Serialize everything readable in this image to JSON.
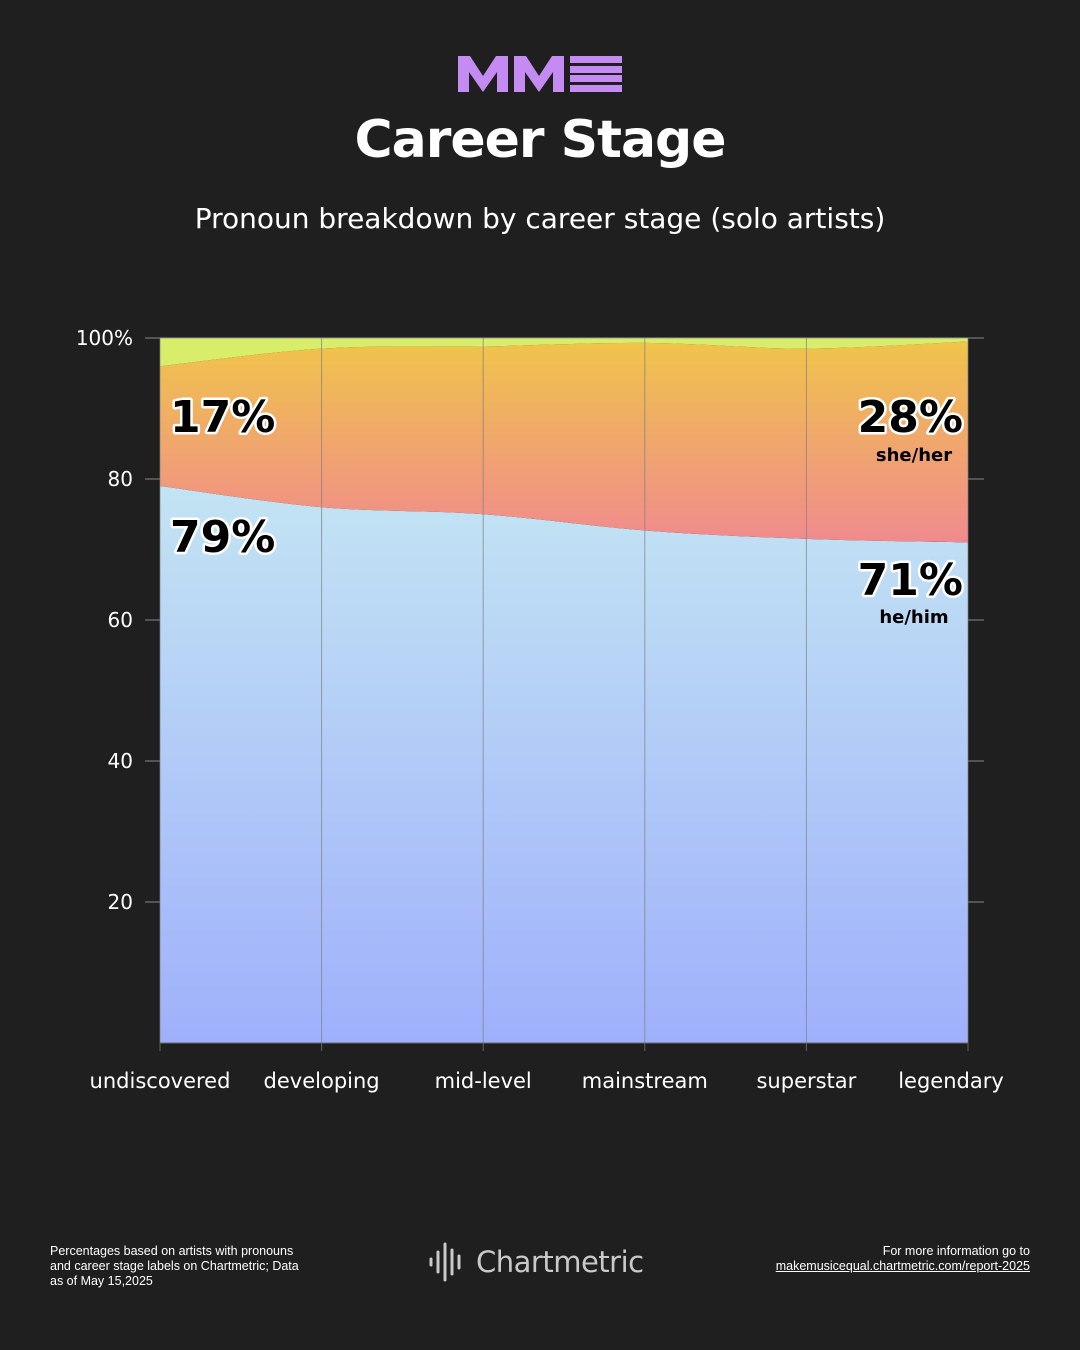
{
  "brand": {
    "logo_text": "MME",
    "logo_color": "#c48cf2"
  },
  "header": {
    "title": "Career Stage",
    "subtitle": "Pronoun breakdown by career stage (solo artists)"
  },
  "chart_data": {
    "type": "area",
    "stacked": true,
    "categories": [
      "undiscovered",
      "developing",
      "mid-level",
      "mainstream",
      "superstar",
      "legendary"
    ],
    "ylim": [
      0,
      100
    ],
    "yticks": [
      "100%",
      "80",
      "60",
      "40",
      "20"
    ],
    "grid": true,
    "series": [
      {
        "name": "he/him",
        "values": [
          79,
          76,
          75,
          72.7,
          71.5,
          71
        ],
        "color_top": "#c3e4f3",
        "color_bottom": "#9fb0fb"
      },
      {
        "name": "she/her",
        "values": [
          17,
          22.5,
          23.8,
          26.6,
          27,
          28.5
        ],
        "color_top": "#f0c44a",
        "color_bottom": "#f08a8e"
      },
      {
        "name": "",
        "values": [
          4,
          1.5,
          1.2,
          0.7,
          1.5,
          0.5
        ],
        "color_top": "#d8ee6a",
        "color_bottom": "#d8ee6a"
      }
    ],
    "annotations": {
      "left_she": "17%",
      "left_he": "79%",
      "right_she": "28%",
      "right_she_label": "she/her",
      "right_he": "71%",
      "right_he_label": "he/him"
    }
  },
  "footer": {
    "note_lines": [
      "Percentages based on artists with pronouns",
      "and career stage labels on Chartmetric; Data",
      "as of May 15,2025"
    ],
    "brand_name": "Chartmetric",
    "link_intro": "For more information go to",
    "link_text": "makemusicequal.chartmetric.com/report-2025"
  }
}
